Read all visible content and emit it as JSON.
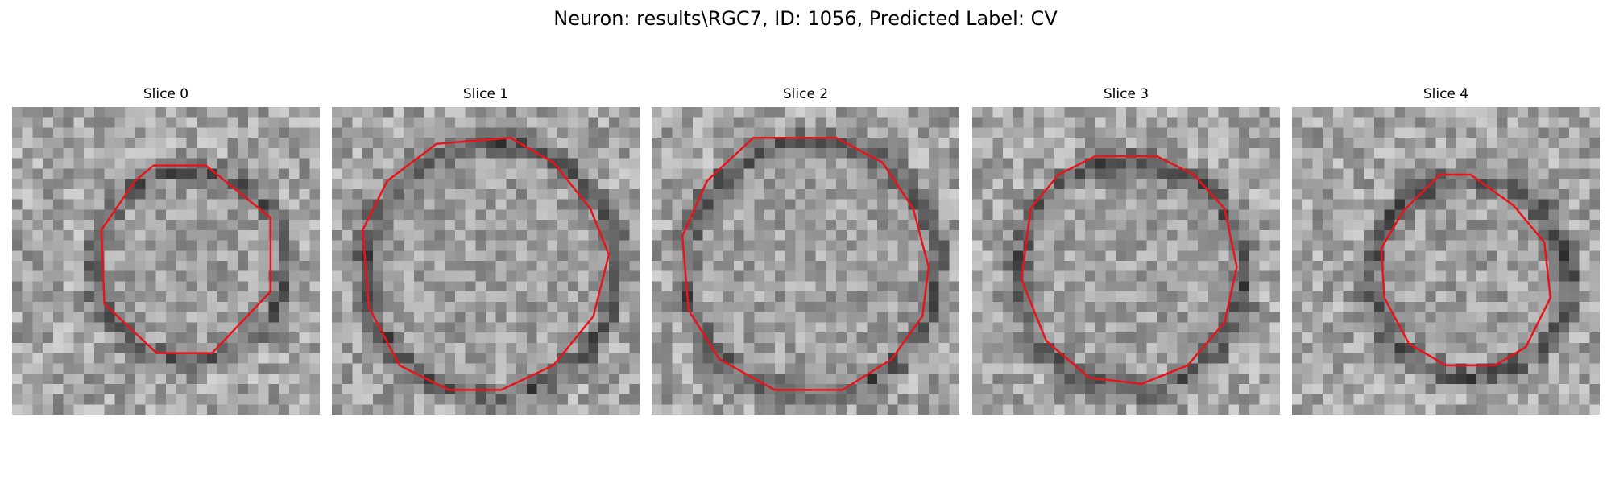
{
  "figure": {
    "title": "Neuron: results\\RGC7, ID: 1056, Predicted Label: CV"
  },
  "panels": [
    {
      "title": "Slice 0",
      "contour": [
        [
          0.46,
          0.19
        ],
        [
          0.63,
          0.19
        ],
        [
          0.84,
          0.36
        ],
        [
          0.84,
          0.6
        ],
        [
          0.65,
          0.8
        ],
        [
          0.47,
          0.8
        ],
        [
          0.3,
          0.64
        ],
        [
          0.29,
          0.4
        ],
        [
          0.4,
          0.24
        ]
      ],
      "ring": 0.18,
      "center": [
        0.56,
        0.5
      ],
      "radius": 0.31
    },
    {
      "title": "Slice 1",
      "contour": [
        [
          0.34,
          0.12
        ],
        [
          0.58,
          0.1
        ],
        [
          0.72,
          0.18
        ],
        [
          0.84,
          0.33
        ],
        [
          0.9,
          0.48
        ],
        [
          0.85,
          0.68
        ],
        [
          0.72,
          0.84
        ],
        [
          0.55,
          0.92
        ],
        [
          0.38,
          0.92
        ],
        [
          0.22,
          0.84
        ],
        [
          0.12,
          0.65
        ],
        [
          0.1,
          0.4
        ],
        [
          0.18,
          0.24
        ]
      ],
      "ring": 0.32,
      "center": [
        0.5,
        0.51
      ],
      "radius": 0.41
    },
    {
      "title": "Slice 2",
      "contour": [
        [
          0.33,
          0.1
        ],
        [
          0.6,
          0.1
        ],
        [
          0.75,
          0.18
        ],
        [
          0.85,
          0.33
        ],
        [
          0.9,
          0.52
        ],
        [
          0.88,
          0.68
        ],
        [
          0.78,
          0.82
        ],
        [
          0.62,
          0.92
        ],
        [
          0.4,
          0.92
        ],
        [
          0.22,
          0.82
        ],
        [
          0.12,
          0.66
        ],
        [
          0.1,
          0.42
        ],
        [
          0.18,
          0.24
        ]
      ],
      "ring": 0.28,
      "center": [
        0.5,
        0.51
      ],
      "radius": 0.41
    },
    {
      "title": "Slice 3",
      "contour": [
        [
          0.4,
          0.16
        ],
        [
          0.6,
          0.16
        ],
        [
          0.72,
          0.22
        ],
        [
          0.82,
          0.33
        ],
        [
          0.86,
          0.52
        ],
        [
          0.82,
          0.7
        ],
        [
          0.7,
          0.84
        ],
        [
          0.55,
          0.9
        ],
        [
          0.38,
          0.88
        ],
        [
          0.24,
          0.76
        ],
        [
          0.16,
          0.56
        ],
        [
          0.19,
          0.33
        ],
        [
          0.28,
          0.22
        ]
      ],
      "ring": 0.26,
      "center": [
        0.5,
        0.53
      ],
      "radius": 0.37
    },
    {
      "title": "Slice 4",
      "contour": [
        [
          0.48,
          0.22
        ],
        [
          0.58,
          0.22
        ],
        [
          0.72,
          0.32
        ],
        [
          0.82,
          0.44
        ],
        [
          0.84,
          0.62
        ],
        [
          0.76,
          0.78
        ],
        [
          0.66,
          0.84
        ],
        [
          0.5,
          0.84
        ],
        [
          0.38,
          0.77
        ],
        [
          0.3,
          0.62
        ],
        [
          0.29,
          0.46
        ],
        [
          0.36,
          0.34
        ]
      ],
      "ring": 0.34,
      "center": [
        0.56,
        0.54
      ],
      "radius": 0.32
    }
  ]
}
